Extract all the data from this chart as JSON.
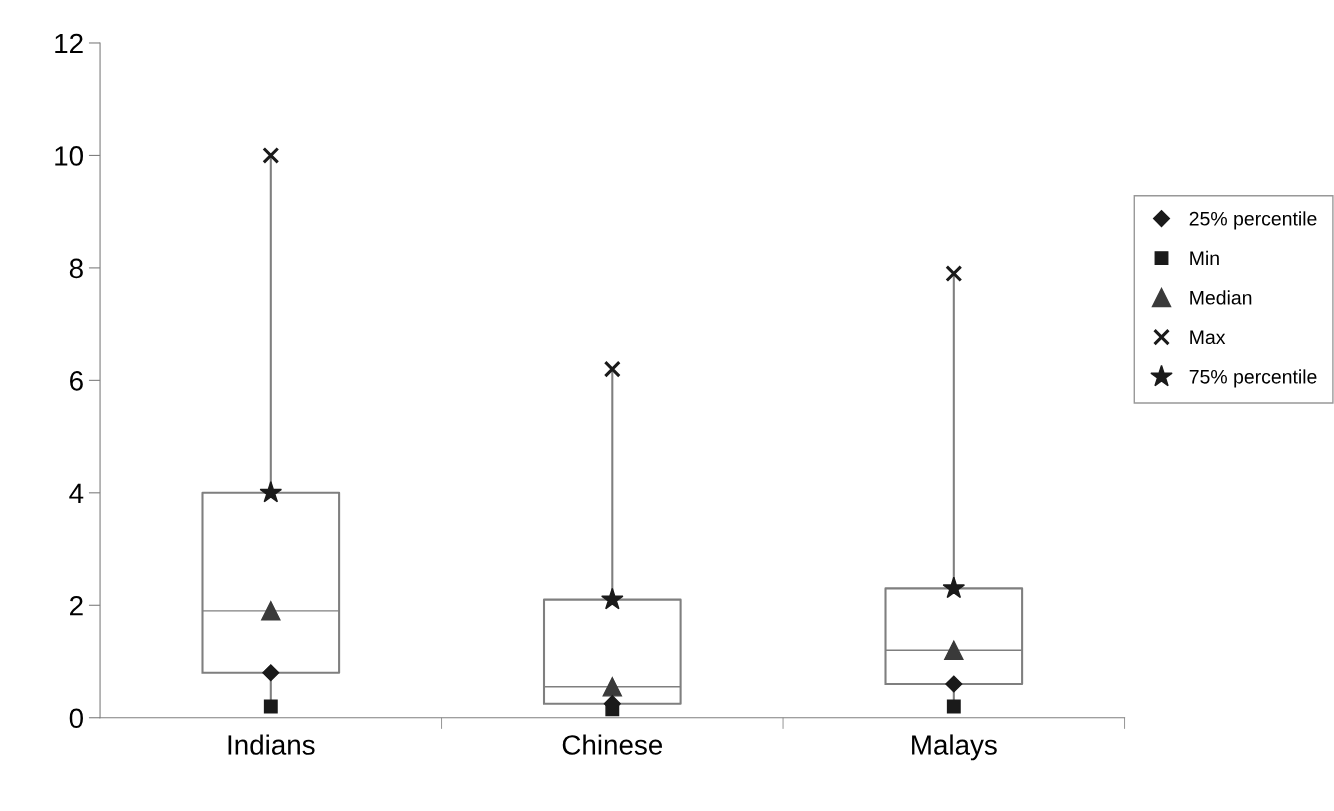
{
  "chart_data": {
    "type": "box",
    "categories": [
      "Indians",
      "Chinese",
      "Malays"
    ],
    "boxes": [
      {
        "low": 0.2,
        "q1": 0.8,
        "median": 1.9,
        "q3": 4.0,
        "high": 10.0
      },
      {
        "low": 0.15,
        "q1": 0.25,
        "median": 0.55,
        "q3": 2.1,
        "high": 6.2
      },
      {
        "low": 0.2,
        "q1": 0.6,
        "median": 1.2,
        "q3": 2.3,
        "high": 7.9
      }
    ],
    "series": [
      {
        "type": "scatter",
        "name": "25% percentile",
        "marker": "diamond",
        "color": "#1a1a1a",
        "values": [
          0.8,
          0.25,
          0.6
        ]
      },
      {
        "type": "scatter",
        "name": "Min",
        "marker": "square",
        "color": "#1a1a1a",
        "values": [
          0.2,
          0.15,
          0.2
        ]
      },
      {
        "type": "scatter",
        "name": "Median",
        "marker": "triangle",
        "color": "#3a3a3a",
        "values": [
          1.9,
          0.55,
          1.2
        ]
      },
      {
        "type": "scatter",
        "name": "Max",
        "marker": "cross",
        "color": "#1a1a1a",
        "values": [
          10.0,
          6.2,
          7.9
        ]
      },
      {
        "type": "scatter",
        "name": "75% percentile",
        "marker": "star",
        "color": "#1a1a1a",
        "values": [
          4.0,
          2.1,
          2.3
        ]
      }
    ],
    "ylim": [
      0,
      12
    ],
    "yticks": [
      0,
      2,
      4,
      6,
      8,
      10,
      12
    ],
    "grid": false,
    "legend": "right"
  }
}
